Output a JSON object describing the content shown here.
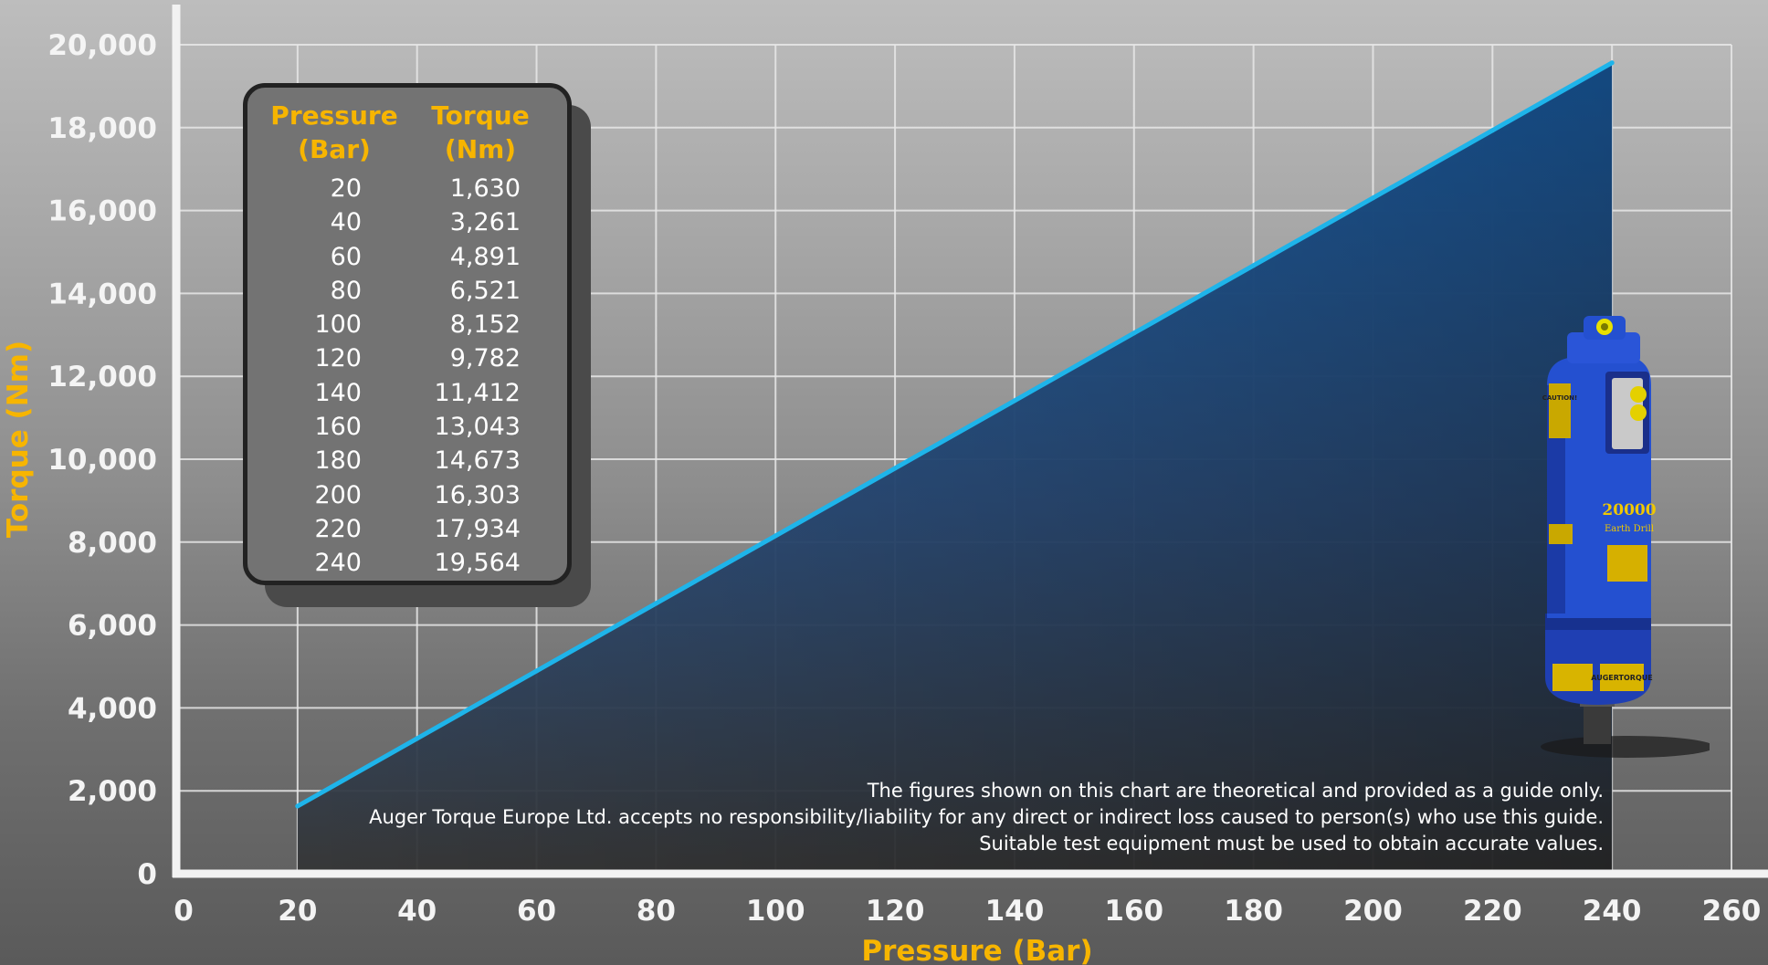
{
  "chart_data": {
    "type": "area",
    "x": [
      20,
      40,
      60,
      80,
      100,
      120,
      140,
      160,
      180,
      200,
      220,
      240
    ],
    "y": [
      1630,
      3261,
      4891,
      6521,
      8152,
      9782,
      11412,
      13043,
      14673,
      16303,
      17934,
      19564
    ],
    "xlabel": "Pressure (Bar)",
    "ylabel": "Torque (Nm)",
    "xlim": [
      0,
      260
    ],
    "ylim": [
      0,
      20000
    ],
    "x_ticks": [
      "0",
      "20",
      "40",
      "60",
      "80",
      "100",
      "120",
      "140",
      "160",
      "180",
      "200",
      "220",
      "240",
      "260"
    ],
    "y_ticks": [
      "0",
      "2,000",
      "4,000",
      "6,000",
      "8,000",
      "10,000",
      "12,000",
      "14,000",
      "16,000",
      "18,000",
      "20,000"
    ],
    "grid": true,
    "line_color": "#1eb4ea",
    "fill_color_top": "#1e6fc4",
    "fill_color_bottom": "#3a3a3a",
    "axis_title_color": "#f7b500"
  },
  "table": {
    "header_pressure": "Pressure",
    "header_pressure_unit": "(Bar)",
    "header_torque": "Torque",
    "header_torque_unit": "(Nm)",
    "rows": [
      {
        "pressure": "20",
        "torque": "1,630"
      },
      {
        "pressure": "40",
        "torque": "3,261"
      },
      {
        "pressure": "60",
        "torque": "4,891"
      },
      {
        "pressure": "80",
        "torque": "6,521"
      },
      {
        "pressure": "100",
        "torque": "8,152"
      },
      {
        "pressure": "120",
        "torque": "9,782"
      },
      {
        "pressure": "140",
        "torque": "11,412"
      },
      {
        "pressure": "160",
        "torque": "13,043"
      },
      {
        "pressure": "180",
        "torque": "14,673"
      },
      {
        "pressure": "200",
        "torque": "16,303"
      },
      {
        "pressure": "220",
        "torque": "17,934"
      },
      {
        "pressure": "240",
        "torque": "19,564"
      }
    ]
  },
  "disclaimer": {
    "line1": "The figures shown on this chart are theoretical and provided as a guide only.",
    "line2": "Auger Torque Europe Ltd. accepts no responsibility/liability for any direct or indirect loss caused to person(s) who use this guide.",
    "line3": "Suitable test equipment must be used to obtain accurate values."
  },
  "product": {
    "icon": "auger-drive-icon",
    "label_model": "20000",
    "label_sub": "Earth Drill",
    "label_caution": "CAUTION!",
    "label_brand": "AUGERTORQUE"
  }
}
